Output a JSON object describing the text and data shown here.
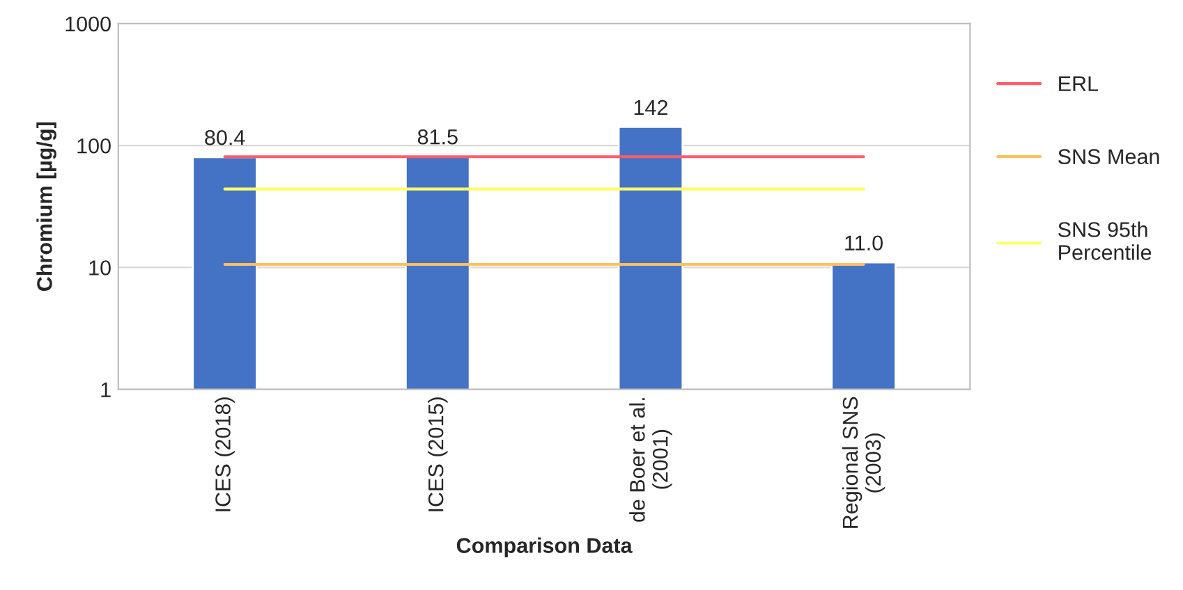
{
  "chart_data": {
    "type": "bar",
    "xlabel": "Comparison Data",
    "ylabel": "Chromium [µg/g]",
    "categories": [
      "ICES (2018)",
      "ICES (2015)",
      "de Boer et al.\n(2001)",
      "Regional SNS\n(2003)"
    ],
    "series": [
      {
        "color": "#4472c4",
        "values": [
          80.4,
          81.5,
          142,
          11.0
        ],
        "value_labels": [
          "80.4",
          "81.5",
          "142",
          "11.0"
        ]
      },
      {
        "type": "line",
        "name": "ERL",
        "color": "#ff5b6b",
        "values": [
          81,
          81,
          81,
          81
        ]
      },
      {
        "type": "line",
        "name": "SNS Mean",
        "color": "#ffc060",
        "values": [
          10.6,
          10.6,
          10.6,
          10.6
        ]
      },
      {
        "type": "line",
        "name": "SNS 95th\nPercentile",
        "color": "#ffff66",
        "values": [
          44,
          44,
          44,
          44
        ]
      }
    ],
    "log": "y",
    "ylim": [
      1,
      1000
    ],
    "yticks": [
      1,
      10,
      100,
      1000
    ],
    "grid": "y",
    "legend": "right"
  }
}
